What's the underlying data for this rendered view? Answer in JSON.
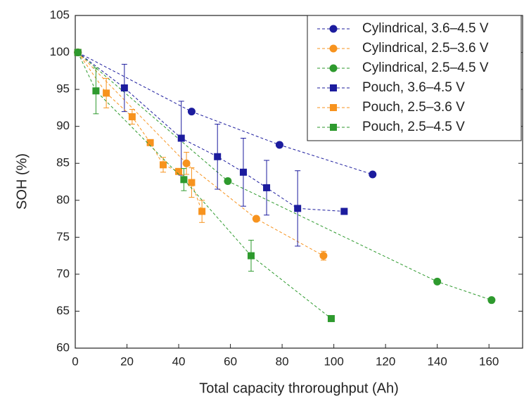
{
  "chart_data": {
    "type": "scatter",
    "x_label": "Total capacity throroughput (Ah)",
    "y_label": "SOH (%)",
    "xlim": [
      0,
      173
    ],
    "ylim": [
      60,
      105
    ],
    "xticks": [
      0,
      20,
      40,
      60,
      80,
      100,
      120,
      140,
      160
    ],
    "yticks": [
      60,
      65,
      70,
      75,
      80,
      85,
      90,
      95,
      100,
      105
    ],
    "grid": false,
    "legend": "upper right",
    "line_style": "dashed",
    "series": [
      {
        "name": "Cylindrical, 3.6–4.5 V",
        "color": "#1c1c9e",
        "marker": "circle",
        "x": [
          1,
          45,
          79,
          115
        ],
        "values": [
          100,
          92,
          87.5,
          83.5
        ],
        "errors": [
          null,
          null,
          null,
          null
        ]
      },
      {
        "name": "Cylindrical, 2.5–3.6 V",
        "color": "#f7931e",
        "marker": "circle",
        "x": [
          1,
          43,
          70,
          96
        ],
        "values": [
          100,
          85,
          77.5,
          72.5
        ],
        "errors": [
          null,
          1.5,
          null,
          0.6
        ]
      },
      {
        "name": "Cylindrical, 2.5–4.5 V",
        "color": "#2e9a2e",
        "marker": "circle",
        "x": [
          1,
          59,
          140,
          161
        ],
        "values": [
          100,
          82.6,
          69,
          66.5
        ],
        "errors": [
          null,
          null,
          null,
          null
        ]
      },
      {
        "name": "Pouch, 3.6–4.5 V",
        "color": "#1c1c9e",
        "marker": "square",
        "x": [
          1,
          19,
          41,
          55,
          65,
          74,
          86,
          104
        ],
        "values": [
          100,
          95.2,
          88.4,
          85.9,
          83.8,
          81.7,
          78.9,
          78.5
        ],
        "errors": [
          null,
          3.2,
          5,
          4.4,
          4.6,
          3.7,
          5.1,
          null
        ]
      },
      {
        "name": "Pouch, 2.5–3.6 V",
        "color": "#f7931e",
        "marker": "square",
        "x": [
          1,
          12,
          22,
          29,
          34,
          40,
          45,
          49
        ],
        "values": [
          100,
          94.5,
          91.3,
          87.8,
          84.8,
          83.9,
          82.4,
          78.5
        ],
        "errors": [
          null,
          2,
          1,
          null,
          1,
          null,
          2,
          1.5
        ]
      },
      {
        "name": "Pouch, 2.5–4.5 V",
        "color": "#2e9a2e",
        "marker": "square",
        "x": [
          1,
          8,
          42,
          68,
          99
        ],
        "values": [
          100,
          94.8,
          82.8,
          72.5,
          64
        ],
        "errors": [
          null,
          3.1,
          1.5,
          2.1,
          null
        ]
      }
    ]
  }
}
